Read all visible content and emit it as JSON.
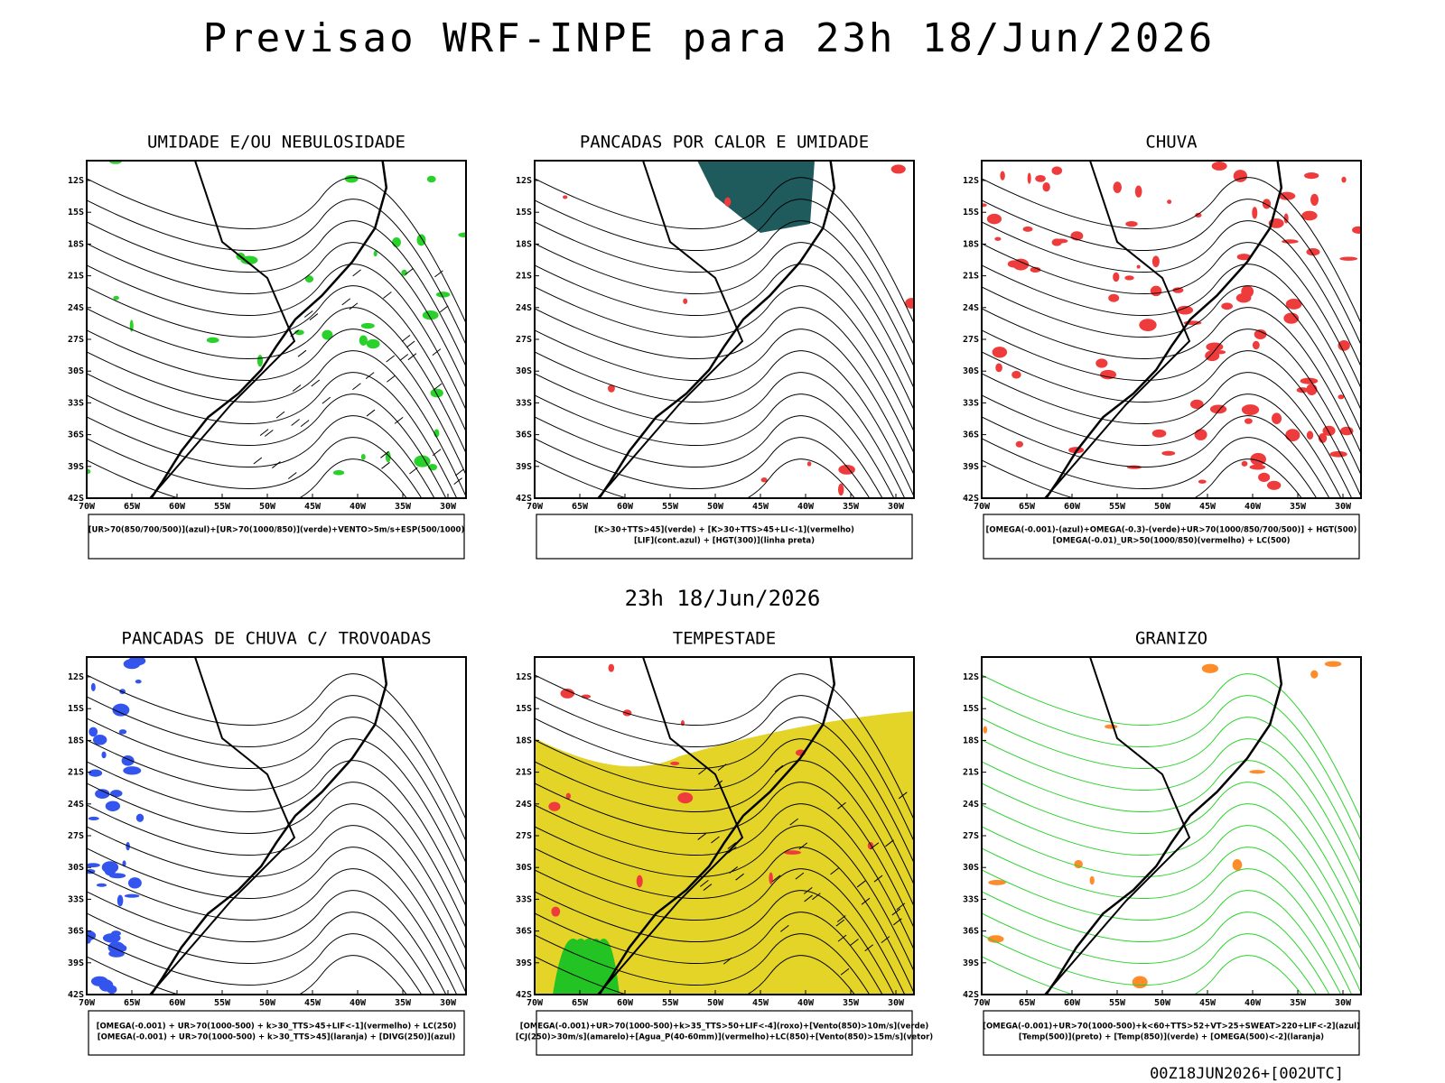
{
  "header": {
    "title": "Previsao WRF-INPE  para 23h 18/Jun/2026",
    "subtitle": "23h 18/Jun/2026",
    "footer": "00Z18JUN2026+[002UTC]"
  },
  "lat_labels": [
    "12S",
    "15S",
    "18S",
    "21S",
    "24S",
    "27S",
    "30S",
    "33S",
    "36S",
    "39S",
    "42S"
  ],
  "lon_labels": [
    "70W",
    "65W",
    "60W",
    "55W",
    "50W",
    "45W",
    "40W",
    "35W",
    "30W"
  ],
  "panels": [
    {
      "title": "UMIDADE E/OU NEBULOSIDADE",
      "legend": [
        "[UR>70(850/700/500)](azul)+[UR>70(1000/850)](verde)+VENTO>5m/s+ESP(500/1000)"
      ]
    },
    {
      "title": "PANCADAS POR CALOR E UMIDADE",
      "legend": [
        "[K>30+TTS>45](verde) + [K>30+TTS>45+LI<-1](vermelho)",
        "[LIF](cont.azul) + [HGT(300)](linha preta)"
      ]
    },
    {
      "title": "CHUVA",
      "legend": [
        "[OMEGA(-0.001)-(azul)+OMEGA(-0.3)-(verde)+UR>70(1000/850/700/500)] + HGT(500)",
        "[OMEGA(-0.01)_UR>50(1000/850)(vermelho) + LC(500)"
      ]
    },
    {
      "title": "PANCADAS DE CHUVA C/ TROVOADAS",
      "legend": [
        "[OMEGA(-0.001) + UR>70(1000-500) + k>30_TTS>45+LIF<-1](vermelho) + LC(250)",
        "[OMEGA(-0.001) + UR>70(1000-500) + k>30_TTS>45](laranja) + [DIVG(250)](azul)"
      ]
    },
    {
      "title": "TEMPESTADE",
      "legend": [
        "[OMEGA(-0.001)+UR>70(1000-500)+k>35_TTS>50+LIF<-4](roxo)+[Vento(850)>10m/s](verde)",
        "[CJ(250)>30m/s](amarelo)+[Agua_P(40-60mm)](vermelho)+LC(850)+[Vento(850)>15m/s](vetor)"
      ]
    },
    {
      "title": "GRANIZO",
      "legend": [
        "[OMEGA(-0.001)+UR>70(1000-500)+k<60+TTS>52+VT>25+SWEAT>220+LIF<-2](azul)",
        "[Temp(500)](preto) + [Temp(850)](verde) + [OMEGA(500)<-2](laranja)"
      ]
    }
  ]
}
